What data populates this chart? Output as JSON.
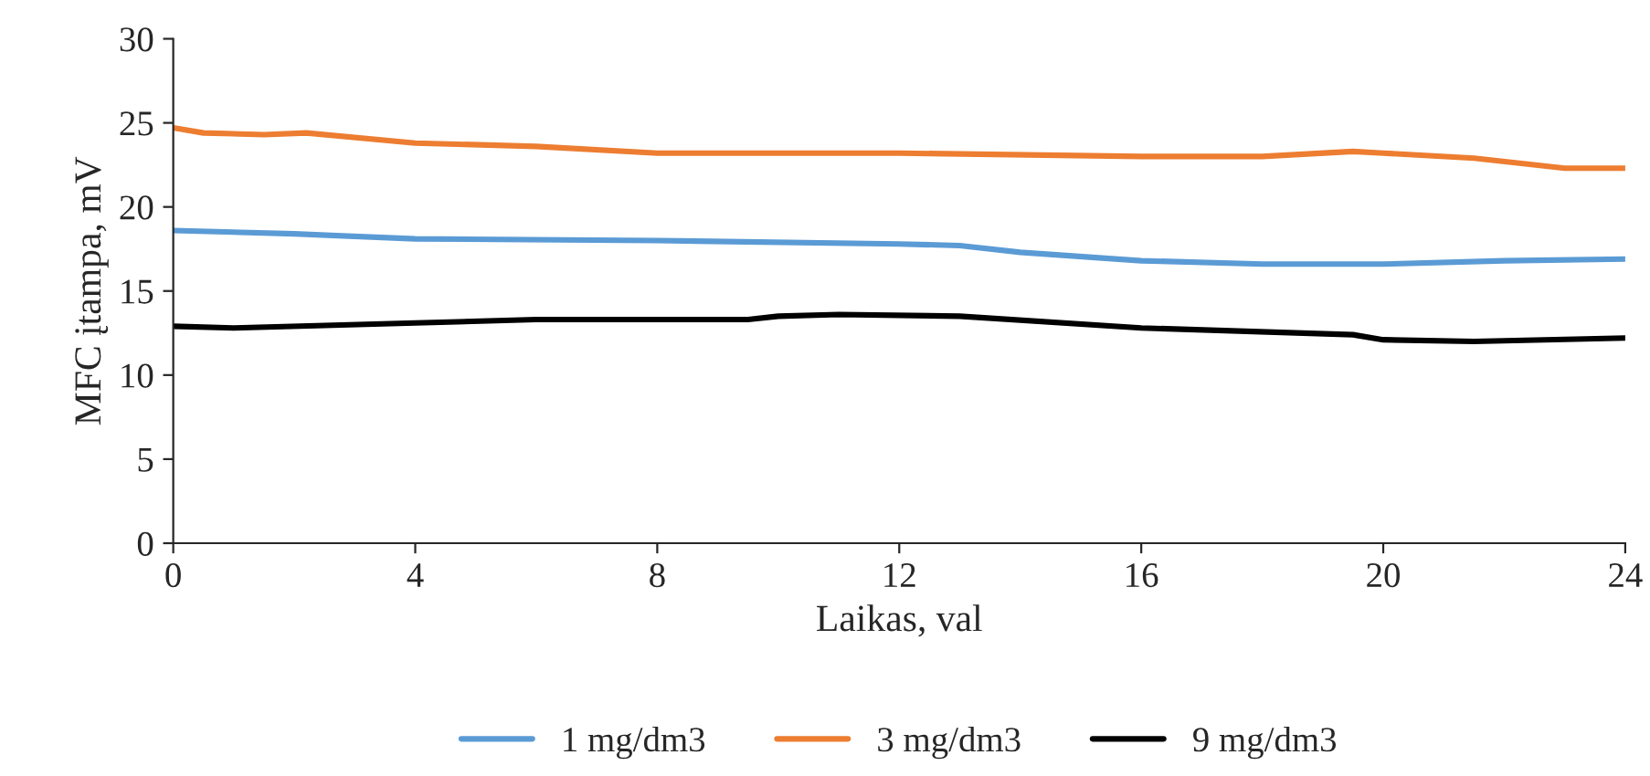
{
  "chart_data": {
    "type": "line",
    "xlabel": "Laikas, val",
    "ylabel": "MFC įtampa, mV",
    "xlim": [
      0,
      24
    ],
    "xticks": [
      0,
      4,
      8,
      12,
      16,
      20,
      24
    ],
    "ylim": [
      0,
      30
    ],
    "yticks": [
      0,
      5,
      10,
      15,
      20,
      25,
      30
    ],
    "grid": false,
    "legend": "bottom",
    "marker": "none",
    "line_style": "solid",
    "series": [
      {
        "name": "1 mg/dm3",
        "color": "#5b9bd5",
        "x": [
          0,
          2,
          4,
          8,
          12,
          13,
          14,
          16,
          18,
          20,
          22,
          24
        ],
        "values": [
          18.6,
          18.4,
          18.1,
          18.0,
          17.8,
          17.7,
          17.3,
          16.8,
          16.6,
          16.6,
          16.8,
          16.9
        ]
      },
      {
        "name": "3 mg/dm3",
        "color": "#ed7d31",
        "x": [
          0,
          0.5,
          1.5,
          2.2,
          4,
          6,
          8,
          12,
          16,
          18,
          19.5,
          20,
          21.5,
          23,
          24
        ],
        "values": [
          24.7,
          24.4,
          24.3,
          24.4,
          23.8,
          23.6,
          23.2,
          23.2,
          23.0,
          23.0,
          23.3,
          23.2,
          22.9,
          22.3,
          22.3
        ]
      },
      {
        "name": "9 mg/dm3",
        "color": "#000000",
        "x": [
          0,
          1,
          4,
          6,
          9.5,
          10,
          11,
          13,
          16,
          19.5,
          20,
          21.5,
          24
        ],
        "values": [
          12.9,
          12.8,
          13.1,
          13.3,
          13.3,
          13.5,
          13.6,
          13.5,
          12.8,
          12.4,
          12.1,
          12.0,
          12.2
        ]
      }
    ]
  }
}
